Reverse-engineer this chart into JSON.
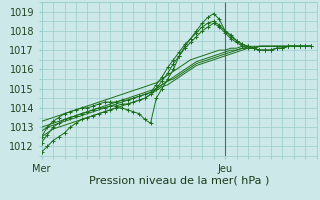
{
  "xlabel": "Pression niveau de la mer( hPa )",
  "ylim": [
    1011.5,
    1019.5
  ],
  "yticks": [
    1012,
    1013,
    1014,
    1015,
    1016,
    1017,
    1018,
    1019
  ],
  "xtick_positions": [
    0,
    32
  ],
  "xtick_labels": [
    "Mer",
    "Jeu"
  ],
  "vline_x": 32,
  "bg_color": "#cce8e8",
  "grid_color": "#99cccc",
  "line_color": "#1a6e1a",
  "vline_color": "#556677",
  "figsize": [
    3.2,
    2.0
  ],
  "dpi": 100,
  "xlim": [
    0,
    48
  ],
  "series": [
    {
      "y": [
        1011.7,
        1012.0,
        1012.3,
        1012.5,
        1012.7,
        1013.0,
        1013.2,
        1013.4,
        1013.5,
        1013.6,
        1013.7,
        1013.8,
        1013.9,
        1014.0,
        1014.0,
        1013.9,
        1013.8,
        1013.7,
        1013.4,
        1013.2,
        1014.5,
        1015.0,
        1015.5,
        1016.0,
        1016.7,
        1017.2,
        1017.6,
        1018.0,
        1018.4,
        1018.7,
        1018.9,
        1018.6,
        1018.0,
        1017.8,
        1017.5,
        1017.3,
        1017.2,
        1017.1,
        1017.0,
        1017.0,
        1017.0,
        1017.1,
        1017.1,
        1017.2,
        1017.2,
        1017.2,
        1017.2,
        1017.2
      ],
      "marker": true
    },
    {
      "y": [
        1012.5,
        1013.0,
        1013.3,
        1013.5,
        1013.7,
        1013.8,
        1013.9,
        1014.0,
        1014.0,
        1014.1,
        1014.2,
        1014.3,
        1014.3,
        1014.3,
        1014.4,
        1014.4,
        1014.5,
        1014.6,
        1014.7,
        1014.8,
        1015.2,
        1015.6,
        1016.1,
        1016.5,
        1016.9,
        1017.3,
        1017.6,
        1017.9,
        1018.2,
        1018.4,
        1018.5,
        1018.3,
        1018.0,
        1017.7,
        1017.5,
        1017.3,
        1017.2,
        1017.1,
        1017.0,
        1017.0,
        1017.0,
        1017.1,
        1017.1,
        1017.2,
        1017.2,
        1017.2,
        1017.2,
        1017.2
      ],
      "marker": true
    },
    {
      "y": [
        1012.2,
        1012.6,
        1013.0,
        1013.2,
        1013.4,
        1013.5,
        1013.6,
        1013.7,
        1013.8,
        1013.9,
        1014.0,
        1014.0,
        1014.1,
        1014.1,
        1014.2,
        1014.2,
        1014.3,
        1014.4,
        1014.5,
        1014.7,
        1015.0,
        1015.4,
        1015.8,
        1016.3,
        1016.7,
        1017.1,
        1017.4,
        1017.7,
        1018.0,
        1018.2,
        1018.4,
        1018.2,
        1017.9,
        1017.6,
        1017.4,
        1017.2,
        1017.1,
        1017.1,
        1017.0,
        1017.0,
        1017.0,
        1017.1,
        1017.1,
        1017.2,
        1017.2,
        1017.2,
        1017.2,
        1017.2
      ],
      "marker": true
    },
    {
      "y": [
        1013.0,
        1013.1,
        1013.2,
        1013.3,
        1013.4,
        1013.5,
        1013.6,
        1013.7,
        1013.8,
        1013.9,
        1014.0,
        1014.1,
        1014.2,
        1014.3,
        1014.4,
        1014.5,
        1014.6,
        1014.7,
        1014.8,
        1014.9,
        1015.0,
        1015.2,
        1015.4,
        1015.6,
        1015.8,
        1016.0,
        1016.2,
        1016.4,
        1016.5,
        1016.6,
        1016.7,
        1016.8,
        1016.9,
        1017.0,
        1017.0,
        1017.1,
        1017.1,
        1017.1,
        1017.2,
        1017.2,
        1017.2,
        1017.2,
        1017.2,
        1017.2,
        1017.2,
        1017.2,
        1017.2,
        1017.2
      ],
      "marker": false
    },
    {
      "y": [
        1012.8,
        1013.0,
        1013.1,
        1013.2,
        1013.3,
        1013.4,
        1013.5,
        1013.6,
        1013.7,
        1013.8,
        1013.9,
        1014.0,
        1014.1,
        1014.2,
        1014.3,
        1014.4,
        1014.5,
        1014.6,
        1014.7,
        1014.8,
        1015.0,
        1015.2,
        1015.4,
        1015.5,
        1015.7,
        1015.9,
        1016.1,
        1016.3,
        1016.4,
        1016.5,
        1016.6,
        1016.7,
        1016.8,
        1016.9,
        1017.0,
        1017.1,
        1017.1,
        1017.1,
        1017.2,
        1017.2,
        1017.2,
        1017.2,
        1017.2,
        1017.2,
        1017.2,
        1017.2,
        1017.2,
        1017.2
      ],
      "marker": false
    },
    {
      "y": [
        1012.5,
        1012.7,
        1012.9,
        1013.0,
        1013.1,
        1013.2,
        1013.3,
        1013.4,
        1013.5,
        1013.6,
        1013.7,
        1013.8,
        1013.9,
        1014.0,
        1014.1,
        1014.2,
        1014.3,
        1014.4,
        1014.5,
        1014.7,
        1014.9,
        1015.1,
        1015.2,
        1015.4,
        1015.6,
        1015.8,
        1016.0,
        1016.2,
        1016.3,
        1016.4,
        1016.5,
        1016.6,
        1016.7,
        1016.8,
        1016.9,
        1017.0,
        1017.1,
        1017.1,
        1017.2,
        1017.2,
        1017.2,
        1017.2,
        1017.2,
        1017.2,
        1017.2,
        1017.2,
        1017.2,
        1017.2
      ],
      "marker": false
    },
    {
      "y": [
        1013.3,
        1013.4,
        1013.5,
        1013.6,
        1013.7,
        1013.8,
        1013.9,
        1014.0,
        1014.1,
        1014.2,
        1014.3,
        1014.4,
        1014.5,
        1014.6,
        1014.7,
        1014.8,
        1014.9,
        1015.0,
        1015.1,
        1015.2,
        1015.3,
        1015.5,
        1015.7,
        1015.9,
        1016.1,
        1016.3,
        1016.5,
        1016.6,
        1016.7,
        1016.8,
        1016.9,
        1017.0,
        1017.0,
        1017.1,
        1017.1,
        1017.2,
        1017.2,
        1017.2,
        1017.2,
        1017.2,
        1017.2,
        1017.2,
        1017.2,
        1017.2,
        1017.2,
        1017.2,
        1017.2,
        1017.2
      ],
      "marker": false
    }
  ]
}
